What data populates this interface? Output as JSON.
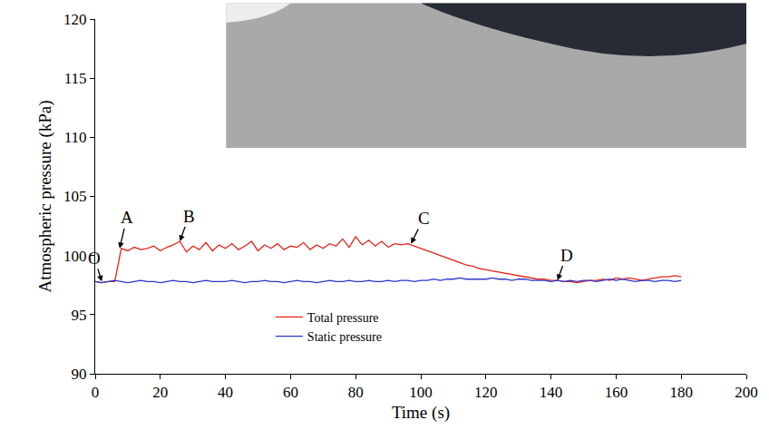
{
  "chart_data": {
    "type": "line",
    "x_label": "Time (s)",
    "y_label": "Atmospheric pressure (kPa)",
    "x": [
      0,
      2,
      4,
      6,
      8,
      10,
      12,
      14,
      16,
      18,
      20,
      22,
      24,
      26,
      28,
      30,
      32,
      34,
      36,
      38,
      40,
      42,
      44,
      46,
      48,
      50,
      52,
      54,
      56,
      58,
      60,
      62,
      64,
      66,
      68,
      70,
      72,
      74,
      76,
      78,
      80,
      82,
      84,
      86,
      88,
      90,
      92,
      94,
      96,
      98,
      100,
      102,
      104,
      106,
      108,
      110,
      112,
      114,
      116,
      118,
      120,
      122,
      124,
      126,
      128,
      130,
      132,
      134,
      136,
      138,
      140,
      142,
      144,
      146,
      148,
      150,
      152,
      154,
      156,
      158,
      160,
      162,
      164,
      166,
      168,
      170,
      172,
      174,
      176,
      178,
      180
    ],
    "series": [
      {
        "name": "Total pressure",
        "color": "#e3241b",
        "values": [
          97.8,
          97.7,
          97.8,
          97.8,
          100.6,
          100.4,
          100.7,
          100.5,
          100.6,
          100.8,
          100.4,
          100.7,
          100.9,
          101.2,
          100.3,
          100.8,
          100.5,
          101.1,
          100.4,
          100.9,
          100.6,
          101.0,
          100.5,
          100.8,
          101.2,
          100.4,
          100.9,
          100.6,
          101.0,
          100.5,
          100.8,
          100.7,
          101.1,
          100.5,
          100.9,
          100.6,
          101.0,
          100.8,
          101.4,
          100.7,
          101.6,
          100.9,
          101.3,
          100.8,
          101.2,
          100.7,
          101.0,
          100.9,
          101.0,
          100.8,
          100.6,
          100.4,
          100.2,
          100.0,
          99.8,
          99.6,
          99.4,
          99.2,
          99.1,
          98.9,
          98.8,
          98.7,
          98.6,
          98.5,
          98.4,
          98.3,
          98.2,
          98.1,
          98.0,
          98.0,
          97.9,
          97.9,
          97.8,
          97.8,
          97.7,
          97.8,
          97.9,
          97.9,
          98.0,
          97.9,
          98.1,
          98.0,
          98.1,
          98.0,
          97.9,
          98.0,
          98.1,
          98.2,
          98.2,
          98.3,
          98.2
        ]
      },
      {
        "name": "Static pressure",
        "color": "#2b36c9",
        "values": [
          97.8,
          97.7,
          97.8,
          97.9,
          97.8,
          97.7,
          97.8,
          97.9,
          97.8,
          97.8,
          97.7,
          97.8,
          97.9,
          97.8,
          97.8,
          97.7,
          97.8,
          97.9,
          97.8,
          97.8,
          97.8,
          97.9,
          97.8,
          97.7,
          97.8,
          97.8,
          97.9,
          97.8,
          97.8,
          97.7,
          97.8,
          97.9,
          97.8,
          97.8,
          97.7,
          97.8,
          97.9,
          97.8,
          97.8,
          97.9,
          97.8,
          97.8,
          97.9,
          97.8,
          97.8,
          97.9,
          97.8,
          97.9,
          97.9,
          97.8,
          97.9,
          97.9,
          98.0,
          97.9,
          98.0,
          98.0,
          98.1,
          98.0,
          98.0,
          98.0,
          98.0,
          98.1,
          98.0,
          98.0,
          97.9,
          98.0,
          98.0,
          97.9,
          97.9,
          97.9,
          97.8,
          97.9,
          97.8,
          97.9,
          97.8,
          97.9,
          97.9,
          97.8,
          97.9,
          98.0,
          97.9,
          98.0,
          97.9,
          97.8,
          97.9,
          97.9,
          97.8,
          97.9,
          97.9,
          97.8,
          97.9
        ]
      }
    ],
    "annotations": [
      {
        "text": "O",
        "x": 2,
        "y": 97.8
      },
      {
        "text": "A",
        "x": 7.5,
        "y": 100.6
      },
      {
        "text": "B",
        "x": 26,
        "y": 101.2
      },
      {
        "text": "C",
        "x": 97,
        "y": 101.0
      },
      {
        "text": "D",
        "x": 142,
        "y": 97.9
      }
    ],
    "xlim": [
      0,
      200
    ],
    "xticks": [
      0,
      20,
      40,
      60,
      80,
      100,
      120,
      140,
      160,
      180,
      200
    ],
    "ylim": [
      90,
      120
    ],
    "yticks": [
      90,
      95,
      100,
      105,
      110,
      115,
      120
    ],
    "grid": false,
    "legend": "bottom"
  }
}
